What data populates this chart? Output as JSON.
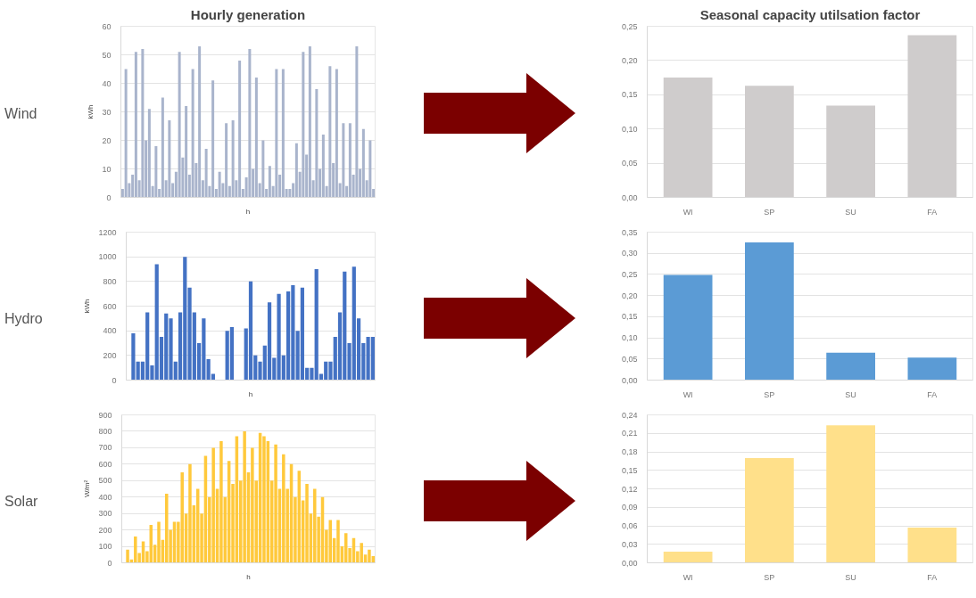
{
  "chart_data": [
    {
      "type": "bar",
      "title": "Hourly generation",
      "annotations": [
        "Wind"
      ],
      "xlabel": "h",
      "ylabel": "kWh",
      "tick_labels": "y",
      "grid": "y",
      "ylim": [
        0,
        60
      ],
      "yticks": [
        0,
        10,
        20,
        30,
        40,
        50,
        60
      ],
      "categories": [
        null,
        null,
        null,
        null,
        null,
        null,
        null,
        null,
        null,
        null,
        null,
        null,
        null,
        null,
        null,
        null,
        null,
        null,
        null,
        null,
        null,
        null,
        null,
        null,
        null,
        null,
        null,
        null,
        null,
        null,
        null,
        null,
        null,
        null,
        null,
        null,
        null,
        null,
        null,
        null,
        null,
        null,
        null,
        null,
        null,
        null,
        null,
        null,
        null,
        null,
        null,
        null,
        null,
        null,
        null,
        null,
        null,
        null,
        null,
        null,
        null,
        null,
        null,
        null,
        null,
        null,
        null,
        null,
        null,
        null,
        null,
        null,
        null,
        null,
        null,
        null
      ],
      "series": [
        {
          "color": "#a9b4cc",
          "values": [
            3,
            45,
            5,
            8,
            51,
            6,
            52,
            20,
            31,
            4,
            18,
            3,
            35,
            6,
            27,
            5,
            9,
            51,
            14,
            32,
            8,
            45,
            12,
            53,
            6,
            17,
            4,
            41,
            3,
            9,
            5,
            26,
            4,
            27,
            6,
            48,
            3,
            7,
            52,
            10,
            42,
            5,
            20,
            3,
            11,
            4,
            45,
            8,
            45,
            3,
            3,
            5,
            19,
            9,
            51,
            15,
            53,
            6,
            38,
            10,
            22,
            4,
            46,
            12,
            45,
            5,
            26,
            4,
            26,
            8,
            53,
            10,
            24,
            6,
            20,
            3
          ]
        }
      ]
    },
    {
      "type": "bar",
      "title": "Seasonal capacity utilsation factor",
      "categories": [
        "WI",
        "SP",
        "SU",
        "FA"
      ],
      "grid": "y",
      "ylim": [
        0,
        0.25
      ],
      "yticks": [
        {
          "value": 0,
          "label": "0,00"
        },
        {
          "value": 0.05,
          "label": "0,05"
        },
        {
          "value": 0.1,
          "label": "0,10"
        },
        {
          "value": 0.15,
          "label": "0,15"
        },
        {
          "value": 0.2,
          "label": "0,20"
        },
        {
          "value": 0.25,
          "label": "0,25"
        }
      ],
      "series": [
        {
          "color": "#cfcccc",
          "values": [
            0.175,
            0.163,
            0.134,
            0.237
          ]
        }
      ]
    },
    {
      "type": "bar",
      "annotations": [
        "Hydro"
      ],
      "xlabel": "h",
      "ylabel": "kWh",
      "tick_labels": "y",
      "grid": "y",
      "ylim": [
        0,
        1200
      ],
      "yticks": [
        0,
        200,
        400,
        600,
        800,
        1000,
        1200
      ],
      "categories": [
        null,
        null,
        null,
        null,
        null,
        null,
        null,
        null,
        null,
        null,
        null,
        null,
        null,
        null,
        null,
        null,
        null,
        null,
        null,
        null,
        null,
        null,
        null,
        null,
        null,
        null,
        null,
        null,
        null,
        null,
        null,
        null,
        null,
        null,
        null,
        null,
        null,
        null,
        null,
        null,
        null,
        null,
        null,
        null,
        null,
        null,
        null,
        null,
        null,
        null,
        null,
        null,
        null
      ],
      "series": [
        {
          "color": "#4472c4",
          "values": [
            0,
            380,
            150,
            150,
            550,
            120,
            940,
            350,
            540,
            500,
            150,
            550,
            1000,
            750,
            550,
            300,
            500,
            170,
            50,
            0,
            0,
            400,
            430,
            0,
            0,
            420,
            800,
            200,
            150,
            280,
            630,
            180,
            700,
            200,
            720,
            770,
            400,
            750,
            100,
            100,
            900,
            50,
            150,
            150,
            350,
            550,
            880,
            300,
            920,
            500,
            300,
            350,
            350
          ]
        }
      ]
    },
    {
      "type": "bar",
      "categories": [
        "WI",
        "SP",
        "SU",
        "FA"
      ],
      "grid": "y",
      "ylim": [
        0,
        0.35
      ],
      "yticks": [
        {
          "value": 0,
          "label": "0,00"
        },
        {
          "value": 0.05,
          "label": "0,05"
        },
        {
          "value": 0.1,
          "label": "0,10"
        },
        {
          "value": 0.15,
          "label": "0,15"
        },
        {
          "value": 0.2,
          "label": "0,20"
        },
        {
          "value": 0.25,
          "label": "0,25"
        },
        {
          "value": 0.3,
          "label": "0,30"
        },
        {
          "value": 0.35,
          "label": "0,35"
        }
      ],
      "series": [
        {
          "color": "#5b9bd5",
          "values": [
            0.249,
            0.326,
            0.065,
            0.053
          ]
        }
      ]
    },
    {
      "type": "bar",
      "annotations": [
        "Solar"
      ],
      "xlabel": "h",
      "ylabel": "W/m²",
      "tick_labels": "y",
      "grid": "y",
      "ylim": [
        0,
        900
      ],
      "yticks": [
        0,
        100,
        200,
        300,
        400,
        500,
        600,
        700,
        800,
        900
      ],
      "categories": [
        null,
        null,
        null,
        null,
        null,
        null,
        null,
        null,
        null,
        null,
        null,
        null,
        null,
        null,
        null,
        null,
        null,
        null,
        null,
        null,
        null,
        null,
        null,
        null,
        null,
        null,
        null,
        null,
        null,
        null,
        null,
        null,
        null,
        null,
        null,
        null,
        null,
        null,
        null,
        null,
        null,
        null,
        null,
        null,
        null,
        null,
        null,
        null,
        null,
        null,
        null,
        null,
        null,
        null,
        null,
        null,
        null,
        null,
        null,
        null,
        null,
        null,
        null,
        null,
        null
      ],
      "series": [
        {
          "color": "#ffc93c",
          "values": [
            0,
            80,
            20,
            160,
            60,
            130,
            70,
            230,
            110,
            250,
            140,
            420,
            200,
            250,
            250,
            550,
            300,
            600,
            350,
            450,
            300,
            650,
            400,
            700,
            450,
            740,
            400,
            620,
            480,
            770,
            500,
            800,
            550,
            700,
            500,
            790,
            770,
            740,
            500,
            720,
            450,
            660,
            450,
            600,
            400,
            560,
            380,
            480,
            300,
            450,
            280,
            400,
            200,
            260,
            150,
            260,
            100,
            180,
            90,
            150,
            70,
            120,
            50,
            80,
            40
          ]
        }
      ]
    },
    {
      "type": "bar",
      "categories": [
        "WI",
        "SP",
        "SU",
        "FA"
      ],
      "grid": "y",
      "ylim": [
        0,
        0.24
      ],
      "yticks": [
        {
          "value": 0,
          "label": "0,00"
        },
        {
          "value": 0.03,
          "label": "0,03"
        },
        {
          "value": 0.06,
          "label": "0,06"
        },
        {
          "value": 0.09,
          "label": "0,09"
        },
        {
          "value": 0.12,
          "label": "0,12"
        },
        {
          "value": 0.15,
          "label": "0,15"
        },
        {
          "value": 0.18,
          "label": "0,18"
        },
        {
          "value": 0.21,
          "label": "0,21"
        },
        {
          "value": 0.24,
          "label": "0,24"
        }
      ],
      "series": [
        {
          "color": "#ffe08a",
          "values": [
            0.018,
            0.17,
            0.223,
            0.057
          ]
        }
      ]
    }
  ]
}
